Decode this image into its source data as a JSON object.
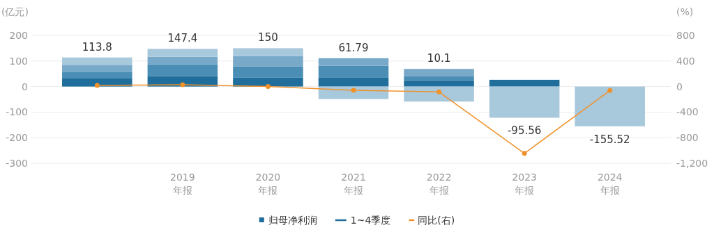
{
  "chart_data": {
    "type": "bar",
    "stacked": true,
    "ylabel": "(亿元)",
    "y2label": "(%)",
    "categories": [
      null,
      "2019\n年报",
      "2020\n年报",
      "2021\n年报",
      "2022\n年报",
      "2023\n年报",
      "2024\n年报"
    ],
    "series": [
      {
        "name": "归母净利润",
        "color": "#1f6e9c",
        "values": [
          33.5,
          40.9,
          34.6,
          36.2,
          24.5,
          26.4,
          null
        ]
      },
      {
        "color": "#4a8db5",
        "values": [
          24.5,
          46.3,
          43.6,
          45.5,
          15.5,
          null,
          null
        ]
      },
      {
        "color": "#78a9c9",
        "values": [
          27,
          29.2,
          40.9,
          29.2,
          28.9,
          null,
          null
        ]
      },
      {
        "color": "#a8c8dc",
        "values": [
          28.8,
          31,
          30.9,
          -49.11,
          -58.8,
          -121.96,
          -155.52
        ]
      },
      {
        "name": "同比(右)",
        "type": "line",
        "axis": "y2",
        "color": "#f0922b",
        "marker": "circle",
        "values": [
          18,
          29.5,
          1.8,
          -58.8,
          -83.7,
          -1046,
          -62.7
        ]
      }
    ],
    "totals": [
      "113.8",
      "147.4",
      "150",
      "61.79",
      "10.1",
      "-95.56",
      "-155.52"
    ],
    "annotations": [
      "1~4季度"
    ],
    "ylim": [
      -300,
      200
    ],
    "yticks": [
      -300,
      -200,
      -100,
      0,
      100,
      200
    ],
    "y2lim": [
      -1200,
      800
    ],
    "y2ticks": [
      {
        "value": -1200,
        "label": "-1,200"
      },
      -800,
      -400,
      0,
      400,
      800
    ],
    "grid": "y",
    "legend": "bottom"
  }
}
